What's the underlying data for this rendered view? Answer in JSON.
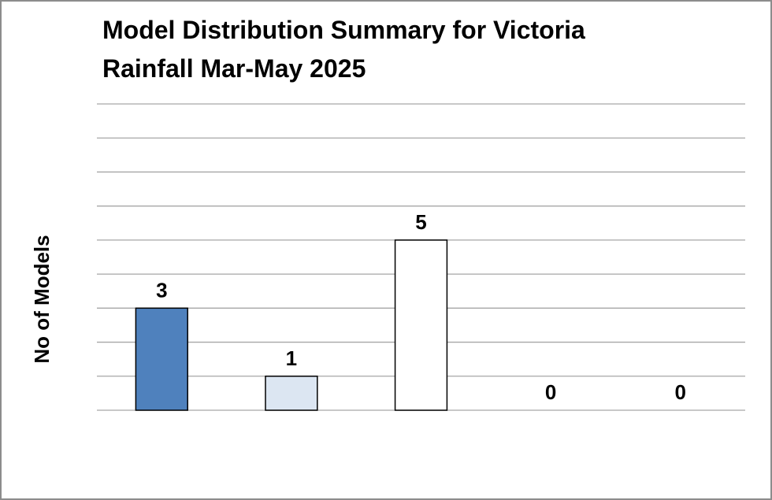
{
  "chart_data": {
    "type": "bar",
    "title": "Model Distribution Summary for Victoria Rainfall Mar-May 2025",
    "y_label": "No of Models",
    "categories": [
      null,
      null,
      null,
      null,
      null
    ],
    "values": [
      3,
      1,
      5,
      0,
      0
    ],
    "colors": [
      "#4f81bd",
      "#dce6f2",
      "#ffffff",
      "#ffffff",
      "#ffffff"
    ],
    "ylim": [
      0,
      9
    ],
    "yticks": [
      0,
      1,
      2,
      3,
      4,
      5,
      6,
      7,
      8,
      9
    ],
    "show_tick_labels": false,
    "grid": true
  }
}
